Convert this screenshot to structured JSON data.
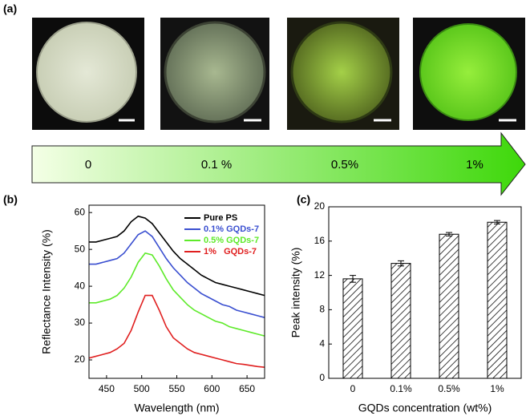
{
  "panel_labels": [
    "(a)",
    "(b)",
    "(c)"
  ],
  "arrow_labels": [
    "0",
    "0.1 %",
    "0.5%",
    "1%"
  ],
  "chart_data": [
    {
      "type": "line",
      "xlabel": "Wavelength (nm)",
      "ylabel": "Reflectance Intensity (%)",
      "x": [
        425,
        435,
        445,
        455,
        465,
        475,
        485,
        495,
        505,
        515,
        525,
        535,
        545,
        555,
        565,
        575,
        585,
        595,
        605,
        615,
        625,
        635,
        645,
        655,
        665,
        675
      ],
      "xlim": [
        425,
        675
      ],
      "xticks": [
        450,
        500,
        550,
        600,
        650
      ],
      "ylim": [
        15,
        62
      ],
      "yticks": [
        20,
        30,
        40,
        50,
        60
      ],
      "legend": "upper right",
      "series": [
        {
          "name": "Pure PS",
          "color": "#000000",
          "values": [
            52,
            52,
            52.5,
            53,
            53.5,
            55,
            57.5,
            59,
            58.5,
            57,
            54.5,
            52,
            49.5,
            47.5,
            46,
            44.5,
            43,
            42,
            41,
            40.5,
            40,
            39.5,
            39,
            38.5,
            38,
            37.5
          ]
        },
        {
          "name": "0.1% GQDs-7",
          "color": "#3a4fd0",
          "values": [
            46,
            46,
            46.5,
            47,
            47.5,
            49,
            51.5,
            54,
            55,
            53.5,
            50.5,
            47.5,
            45,
            43,
            41,
            39.5,
            38,
            37,
            36,
            35,
            34.5,
            33.5,
            33,
            32.5,
            32,
            31.5
          ]
        },
        {
          "name": "0.5% GQDs-7",
          "color": "#5eea2a",
          "values": [
            35.5,
            35.5,
            36,
            36.5,
            37.5,
            39.5,
            42.5,
            46.5,
            49,
            48.5,
            45.5,
            42,
            39,
            37,
            35,
            33.5,
            32.5,
            31.5,
            30.5,
            30,
            29,
            28.5,
            28,
            27.5,
            27,
            26.5
          ]
        },
        {
          "name": "1%   GQDs-7",
          "color": "#e02020",
          "values": [
            20.5,
            21,
            21.5,
            22,
            23,
            24.5,
            28,
            33,
            37.5,
            37.5,
            33.5,
            29,
            26,
            24.5,
            23,
            22,
            21.5,
            21,
            20.5,
            20,
            19.5,
            19,
            18.8,
            18.5,
            18.2,
            18
          ]
        }
      ]
    },
    {
      "type": "bar",
      "xlabel": "GQDs concentration (wt%)",
      "ylabel": "Peak intensity (%)",
      "categories": [
        "0",
        "0.1%",
        "0.5%",
        "1%"
      ],
      "values": [
        11.6,
        13.4,
        16.8,
        18.2
      ],
      "errors": [
        0.4,
        0.3,
        0.2,
        0.2
      ],
      "color": "#000000",
      "ylim": [
        0,
        20
      ],
      "yticks": [
        0,
        4,
        8,
        12,
        16,
        20
      ]
    }
  ]
}
